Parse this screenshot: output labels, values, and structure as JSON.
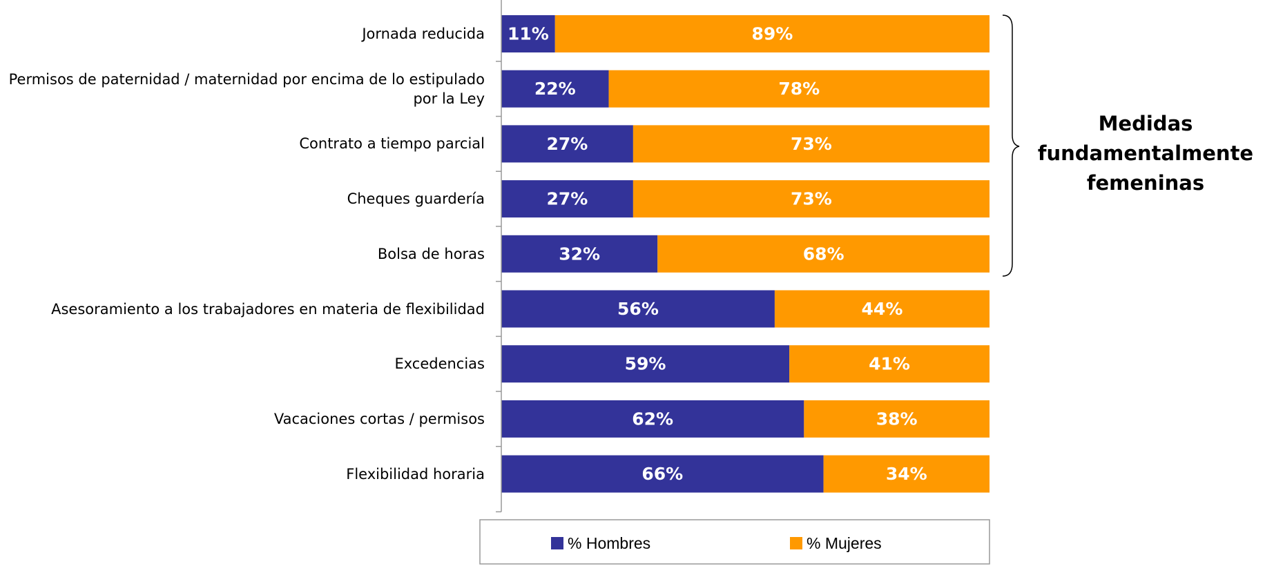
{
  "chart_data": {
    "type": "stacked_bar_horizontal",
    "categories": [
      "Jornada reducida",
      "Permisos de paternidad / maternidad por encima de lo estipulado por la Ley",
      "Contrato a tiempo parcial",
      "Cheques guardería",
      "Bolsa de horas",
      "Asesoramiento a los trabajadores en materia de flexibilidad",
      "Excedencias",
      "Vacaciones cortas / permisos",
      "Flexibilidad horaria"
    ],
    "series": [
      {
        "name": "% Hombres",
        "color": "#333399",
        "values": [
          11,
          22,
          27,
          27,
          32,
          56,
          59,
          62,
          66
        ],
        "value_labels": [
          "11%",
          "22%",
          "27%",
          "27%",
          "32%",
          "56%",
          "59%",
          "62%",
          "66%"
        ]
      },
      {
        "name": "% Mujeres",
        "color": "#ff9900",
        "values": [
          89,
          78,
          73,
          73,
          68,
          44,
          41,
          38,
          34
        ],
        "value_labels": [
          "89%",
          "78%",
          "73%",
          "73%",
          "68%",
          "44%",
          "41%",
          "38%",
          "34%"
        ]
      }
    ],
    "xlim": [
      0,
      100
    ],
    "annotation": "Medidas fundamentalmente femeninas",
    "legend": "bottom"
  }
}
